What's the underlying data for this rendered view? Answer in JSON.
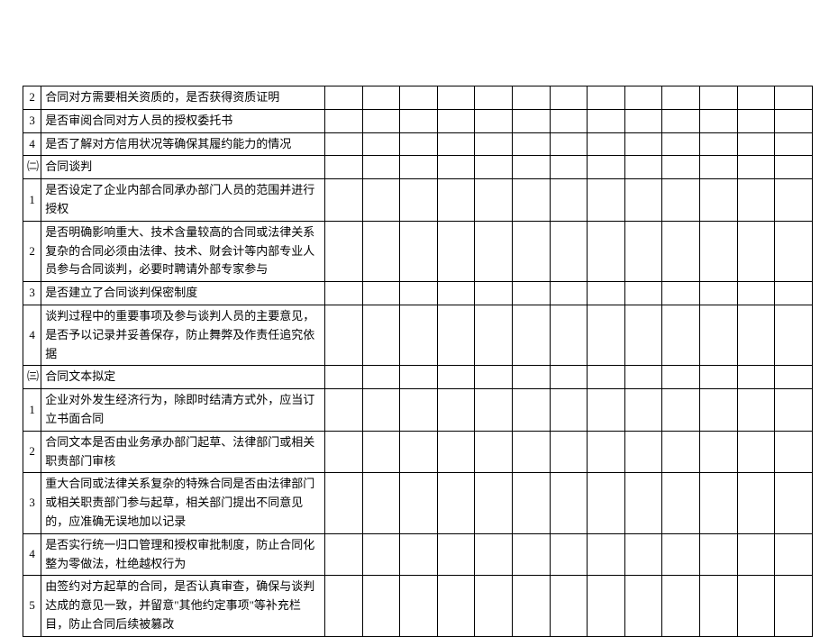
{
  "table": {
    "rows": [
      {
        "num": "2",
        "desc": "合同对方需要相关资质的，是否获得资质证明"
      },
      {
        "num": "3",
        "desc": "是否审阅合同对方人员的授权委托书"
      },
      {
        "num": "4",
        "desc": "是否了解对方信用状况等确保其履约能力的情况"
      },
      {
        "num": "㈡",
        "desc": "合同谈判",
        "section": true
      },
      {
        "num": "1",
        "desc": "是否设定了企业内部合同承办部门人员的范围并进行授权"
      },
      {
        "num": "2",
        "desc": "是否明确影响重大、技术含量较高的合同或法律关系复杂的合同必须由法律、技术、财会计等内部专业人员参与合同谈判，必要时聘请外部专家参与"
      },
      {
        "num": "3",
        "desc": "是否建立了合同谈判保密制度"
      },
      {
        "num": "4",
        "desc": "谈判过程中的重要事项及参与谈判人员的主要意见，是否予以记录并妥善保存，防止舞弊及作责任追究依据"
      },
      {
        "num": "㈢",
        "desc": "合同文本拟定",
        "section": true
      },
      {
        "num": "1",
        "desc": "企业对外发生经济行为，除即时结清方式外，应当订立书面合同"
      },
      {
        "num": "2",
        "desc": "合同文本是否由业务承办部门起草、法律部门或相关职责部门审核"
      },
      {
        "num": "3",
        "desc": "重大合同或法律关系复杂的特殊合同是否由法律部门或相关职责部门参与起草，相关部门提出不同意见的，应准确无误地加以记录"
      },
      {
        "num": "4",
        "desc": "是否实行统一归口管理和授权审批制度，防止合同化整为零做法，杜绝越权行为"
      },
      {
        "num": "5",
        "desc": "由签约对方起草的合同，是否认真审查，确保与谈判达成的意见一致，并留意\"其他约定事项\"等补充栏目，防止合同后续被篡改"
      }
    ],
    "blank_cols": 13,
    "colors": {
      "border": "#000000",
      "background": "#ffffff",
      "text": "#000000"
    },
    "fontsize": 13
  }
}
